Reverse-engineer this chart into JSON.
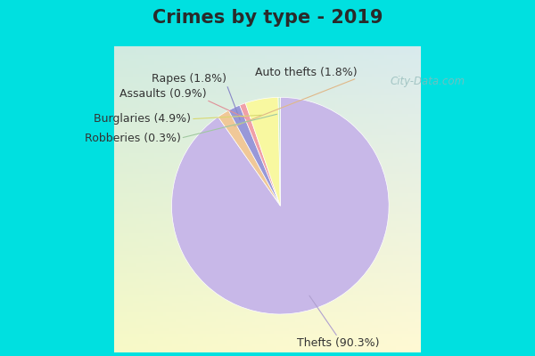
{
  "title": "Crimes by type - 2019",
  "slices": [
    {
      "label": "Thefts (90.3%)",
      "value": 90.3,
      "color": "#c8b8e8"
    },
    {
      "label": "Auto thefts (1.8%)",
      "value": 1.8,
      "color": "#f0c898"
    },
    {
      "label": "Rapes (1.8%)",
      "value": 1.8,
      "color": "#9898d8"
    },
    {
      "label": "Assaults (0.9%)",
      "value": 0.9,
      "color": "#f0a0a8"
    },
    {
      "label": "Burglaries (4.9%)",
      "value": 4.9,
      "color": "#f8f8a0"
    },
    {
      "label": "Robberies (0.3%)",
      "value": 0.3,
      "color": "#c8e8c8"
    }
  ],
  "title_fontsize": 15,
  "label_fontsize": 9,
  "watermark": "City-Data.com"
}
